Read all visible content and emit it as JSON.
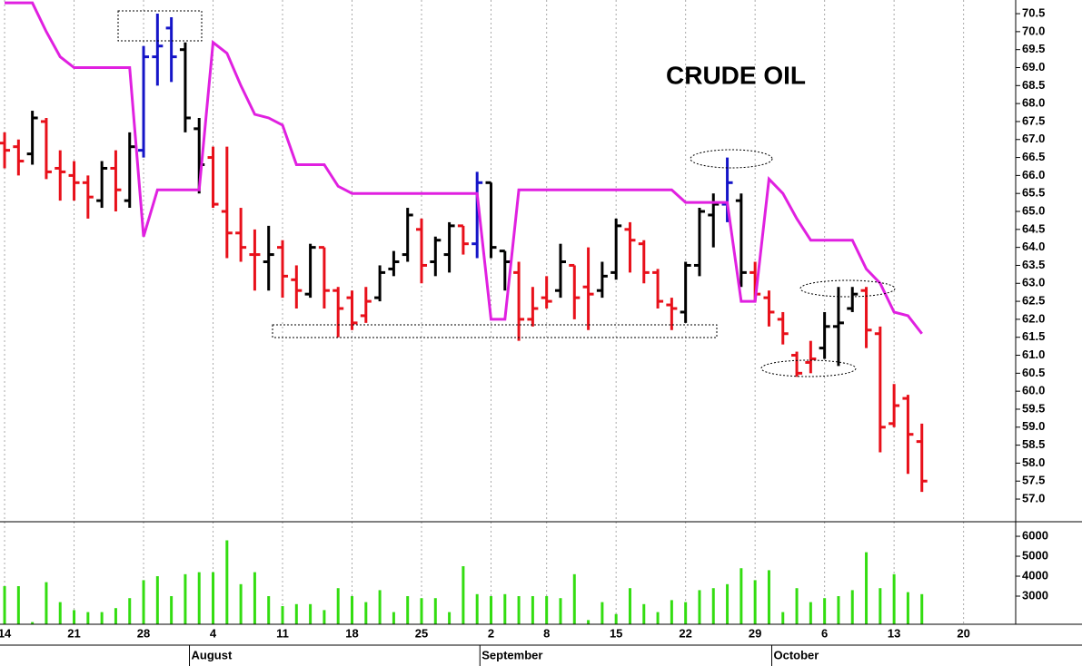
{
  "chart_data": [
    {
      "type": "ohlc",
      "title": "CRUDE OIL",
      "grid": true,
      "x": [
        0,
        1,
        2,
        3,
        4,
        5,
        6,
        7,
        8,
        9,
        10,
        11,
        12,
        13,
        14,
        15,
        16,
        17,
        18,
        19,
        20,
        21,
        22,
        23,
        24,
        25,
        26,
        27,
        28,
        29,
        30,
        31,
        32,
        33,
        34,
        35,
        36,
        37,
        38,
        39,
        40,
        41,
        42,
        43,
        44,
        45,
        46,
        47,
        48,
        49,
        50,
        51,
        52,
        53,
        54,
        55,
        56,
        57,
        58,
        59,
        60,
        61,
        62,
        63,
        64,
        65,
        66
      ],
      "xlim": [
        -0.33,
        72.75
      ],
      "open": [
        66.9,
        66.8,
        66.6,
        67.5,
        66.2,
        66.0,
        65.8,
        65.3,
        66.2,
        65.3,
        66.7,
        69.3,
        70.1,
        69.5,
        67.3,
        66.5,
        65.0,
        64.4,
        63.8,
        63.6,
        64.0,
        63.1,
        62.7,
        64.0,
        62.8,
        62.6,
        62.1,
        62.6,
        63.4,
        63.8,
        64.5,
        63.6,
        63.8,
        64.6,
        64.1,
        65.8,
        63.9,
        63.3,
        62.0,
        62.6,
        62.8,
        63.5,
        62.9,
        62.8,
        63.3,
        64.5,
        64.1,
        63.3,
        62.4,
        62.2,
        63.5,
        64.9,
        65.2,
        65.3,
        63.3,
        62.6,
        62.0,
        61.0,
        60.8,
        61.2,
        61.8,
        62.3,
        62.8,
        61.6,
        59.1,
        59.8,
        58.6
      ],
      "high": [
        67.2,
        67.0,
        67.8,
        67.6,
        66.7,
        66.4,
        66.0,
        66.4,
        66.7,
        67.2,
        69.6,
        70.5,
        70.4,
        69.7,
        67.6,
        66.8,
        66.8,
        65.1,
        64.5,
        64.6,
        64.2,
        63.5,
        64.1,
        64.0,
        62.9,
        62.8,
        62.9,
        63.5,
        63.9,
        65.1,
        64.8,
        64.3,
        64.7,
        64.6,
        66.1,
        65.8,
        63.9,
        63.6,
        62.9,
        63.2,
        64.1,
        63.5,
        64.0,
        63.6,
        64.8,
        64.7,
        64.2,
        63.4,
        62.6,
        63.6,
        65.1,
        65.5,
        66.5,
        65.5,
        63.6,
        62.8,
        62.2,
        61.1,
        61.4,
        62.2,
        62.9,
        62.9,
        62.9,
        61.8,
        60.2,
        59.9,
        59.1
      ],
      "low": [
        66.2,
        66.0,
        66.3,
        65.9,
        65.3,
        65.3,
        64.8,
        65.1,
        65.0,
        65.1,
        66.5,
        68.5,
        68.6,
        67.2,
        65.5,
        65.1,
        63.7,
        63.6,
        62.8,
        62.8,
        62.6,
        62.3,
        62.6,
        62.3,
        61.5,
        61.7,
        61.9,
        62.5,
        63.2,
        63.6,
        63.0,
        63.2,
        63.3,
        63.8,
        63.7,
        63.7,
        62.8,
        61.4,
        61.8,
        62.3,
        62.6,
        62.0,
        61.7,
        62.6,
        63.1,
        63.3,
        63.0,
        62.3,
        61.7,
        61.9,
        63.2,
        64.0,
        64.7,
        62.9,
        62.5,
        61.8,
        61.3,
        60.4,
        60.5,
        60.9,
        60.7,
        62.2,
        61.2,
        58.3,
        59.0,
        57.7,
        57.2
      ],
      "close": [
        66.7,
        66.4,
        67.6,
        66.1,
        66.1,
        65.8,
        65.4,
        66.2,
        65.6,
        66.8,
        69.3,
        69.6,
        69.3,
        67.6,
        66.3,
        65.2,
        64.4,
        64.0,
        63.8,
        63.8,
        63.2,
        62.8,
        64.0,
        62.8,
        62.3,
        61.9,
        62.5,
        63.3,
        63.6,
        64.9,
        63.5,
        64.2,
        64.6,
        64.1,
        65.8,
        64.0,
        63.6,
        62.0,
        62.3,
        62.5,
        63.6,
        62.6,
        62.7,
        63.2,
        64.6,
        64.2,
        63.3,
        62.5,
        62.3,
        63.5,
        65.0,
        65.2,
        65.8,
        63.3,
        62.7,
        62.2,
        61.6,
        60.5,
        60.9,
        61.8,
        61.9,
        62.7,
        61.7,
        59.0,
        59.6,
        58.8,
        57.5
      ],
      "bar_colors": [
        "#e8101a",
        "#e8101a",
        "#000000",
        "#e8101a",
        "#e8101a",
        "#e8101a",
        "#e8101a",
        "#000000",
        "#e8101a",
        "#000000",
        "#1515c8",
        "#1515c8",
        "#1515c8",
        "#000000",
        "#000000",
        "#e8101a",
        "#e8101a",
        "#e8101a",
        "#e8101a",
        "#000000",
        "#e8101a",
        "#e8101a",
        "#000000",
        "#e8101a",
        "#e8101a",
        "#e8101a",
        "#e8101a",
        "#000000",
        "#000000",
        "#000000",
        "#e8101a",
        "#000000",
        "#000000",
        "#e8101a",
        "#1515c8",
        "#000000",
        "#000000",
        "#e8101a",
        "#e8101a",
        "#e8101a",
        "#000000",
        "#e8101a",
        "#e8101a",
        "#000000",
        "#000000",
        "#e8101a",
        "#e8101a",
        "#e8101a",
        "#e8101a",
        "#000000",
        "#000000",
        "#000000",
        "#1515c8",
        "#000000",
        "#e8101a",
        "#e8101a",
        "#e8101a",
        "#e8101a",
        "#e8101a",
        "#000000",
        "#000000",
        "#000000",
        "#e8101a",
        "#e8101a",
        "#e8101a",
        "#e8101a",
        "#e8101a"
      ],
      "line": {
        "color": "#e020e0",
        "values": [
          70.8,
          70.8,
          70.8,
          70.0,
          69.3,
          69.0,
          69.0,
          69.0,
          69.0,
          69.0,
          64.3,
          65.6,
          65.6,
          65.6,
          65.6,
          69.7,
          69.4,
          68.5,
          67.7,
          67.6,
          67.4,
          66.3,
          66.3,
          66.3,
          65.7,
          65.5,
          65.5,
          65.5,
          65.5,
          65.5,
          65.5,
          65.5,
          65.5,
          65.5,
          65.5,
          62.0,
          62.0,
          65.6,
          65.6,
          65.6,
          65.6,
          65.6,
          65.6,
          65.6,
          65.6,
          65.6,
          65.6,
          65.6,
          65.6,
          65.25,
          65.25,
          65.25,
          65.25,
          62.5,
          62.5,
          65.9,
          65.5,
          64.8,
          64.2,
          64.2,
          64.2,
          64.2,
          63.4,
          63.0,
          62.2,
          62.1,
          61.6
        ]
      },
      "ylim": [
        56.37,
        70.88
      ],
      "yticks": [
        {
          "value": 57,
          "label": "57.0"
        },
        57.5,
        {
          "value": 58,
          "label": "58.0"
        },
        58.5,
        {
          "value": 59,
          "label": "59.0"
        },
        59.5,
        {
          "value": 60,
          "label": "60.0"
        },
        60.5,
        {
          "value": 61,
          "label": "61.0"
        },
        61.5,
        {
          "value": 62,
          "label": "62.0"
        },
        62.5,
        {
          "value": 63,
          "label": "63.0"
        },
        63.5,
        {
          "value": 64,
          "label": "64.0"
        },
        64.5,
        {
          "value": 65,
          "label": "65.0"
        },
        65.5,
        {
          "value": 66,
          "label": "66.0"
        },
        66.5,
        {
          "value": 67,
          "label": "67.0"
        },
        67.5,
        {
          "value": 68,
          "label": "68.0"
        },
        68.5,
        {
          "value": 69,
          "label": "69.0"
        },
        69.5,
        {
          "value": 70,
          "label": "70.0"
        },
        70.5
      ]
    },
    {
      "type": "bar",
      "color": "#33dd11",
      "grid": true,
      "x": [
        0,
        1,
        2,
        3,
        4,
        5,
        6,
        7,
        8,
        9,
        10,
        11,
        12,
        13,
        14,
        15,
        16,
        17,
        18,
        19,
        20,
        21,
        22,
        23,
        24,
        25,
        26,
        27,
        28,
        29,
        30,
        31,
        32,
        33,
        34,
        35,
        36,
        37,
        38,
        39,
        40,
        41,
        42,
        43,
        44,
        45,
        46,
        47,
        48,
        49,
        50,
        51,
        52,
        53,
        54,
        55,
        56,
        57,
        58,
        59,
        60,
        61,
        62,
        63,
        64,
        65,
        66
      ],
      "xlim": [
        -0.33,
        72.75
      ],
      "values": [
        3500,
        3500,
        1700,
        3700,
        2700,
        2300,
        2200,
        2200,
        2400,
        2900,
        3800,
        4000,
        3000,
        4100,
        4200,
        4200,
        5800,
        3600,
        4200,
        3000,
        2500,
        2600,
        2600,
        2300,
        3400,
        3000,
        2700,
        3300,
        2200,
        3000,
        2900,
        2900,
        2200,
        4500,
        3100,
        3000,
        3100,
        3000,
        3000,
        3000,
        2900,
        4100,
        1800,
        2700,
        2100,
        3400,
        2600,
        2200,
        2800,
        2700,
        3300,
        3400,
        3600,
        4400,
        3800,
        4300,
        2200,
        3400,
        2700,
        2900,
        3000,
        3300,
        5200,
        3400,
        4100,
        3200,
        3100
      ],
      "ylim": [
        1590,
        6730
      ],
      "yticks": [
        3000,
        4000,
        5000,
        6000
      ],
      "xticks": [
        {
          "value": 0,
          "label": "14"
        },
        {
          "value": 5,
          "label": "21"
        },
        {
          "value": 10,
          "label": "28"
        },
        {
          "value": 15,
          "label": "4"
        },
        {
          "value": 20,
          "label": "11"
        },
        {
          "value": 25,
          "label": "18"
        },
        {
          "value": 30,
          "label": "25"
        },
        {
          "value": 35,
          "label": "2"
        },
        {
          "value": 39,
          "label": "8"
        },
        {
          "value": 44,
          "label": "15"
        },
        {
          "value": 49,
          "label": "22"
        },
        {
          "value": 54,
          "label": "29"
        },
        {
          "value": 59,
          "label": "6"
        },
        {
          "value": 64,
          "label": "13"
        },
        {
          "value": 69,
          "label": "20"
        }
      ],
      "month_ticks": [
        {
          "value": 13.3,
          "label": "August"
        },
        {
          "value": 34.2,
          "label": "September"
        },
        {
          "value": 55.2,
          "label": "October"
        }
      ]
    }
  ]
}
